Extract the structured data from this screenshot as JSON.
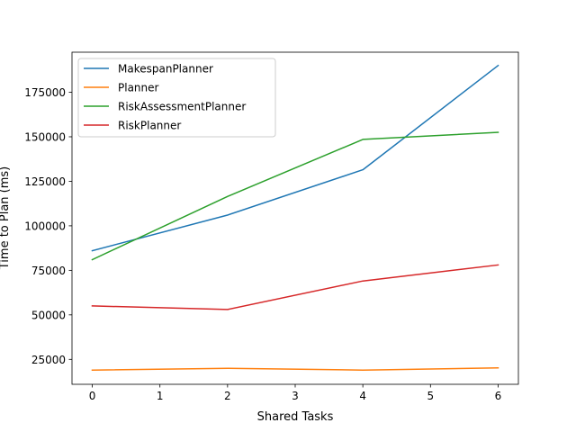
{
  "chart_data": {
    "type": "line",
    "title": "",
    "xlabel": "Shared Tasks",
    "ylabel": "Time to Plan (ms)",
    "xlim": [
      -0.3,
      6.3
    ],
    "ylim": [
      11000,
      197500
    ],
    "xticks": [
      0,
      1,
      2,
      3,
      4,
      5,
      6
    ],
    "yticks": [
      25000,
      50000,
      75000,
      100000,
      125000,
      150000,
      175000
    ],
    "grid": false,
    "legend_position": "upper-left",
    "x": [
      0,
      2,
      4,
      6
    ],
    "series": [
      {
        "name": " MakespanPlanner",
        "color": "#1f77b4",
        "values": [
          86000,
          106000,
          131500,
          190000
        ]
      },
      {
        "name": " Planner",
        "color": "#ff7f0e",
        "values": [
          19000,
          20000,
          19000,
          20200
        ]
      },
      {
        "name": " RiskAssessmentPlanner",
        "color": "#2ca02c",
        "values": [
          81000,
          116500,
          148500,
          152500
        ]
      },
      {
        "name": " RiskPlanner",
        "color": "#d62728",
        "values": [
          55000,
          53000,
          69000,
          78000
        ]
      }
    ]
  }
}
